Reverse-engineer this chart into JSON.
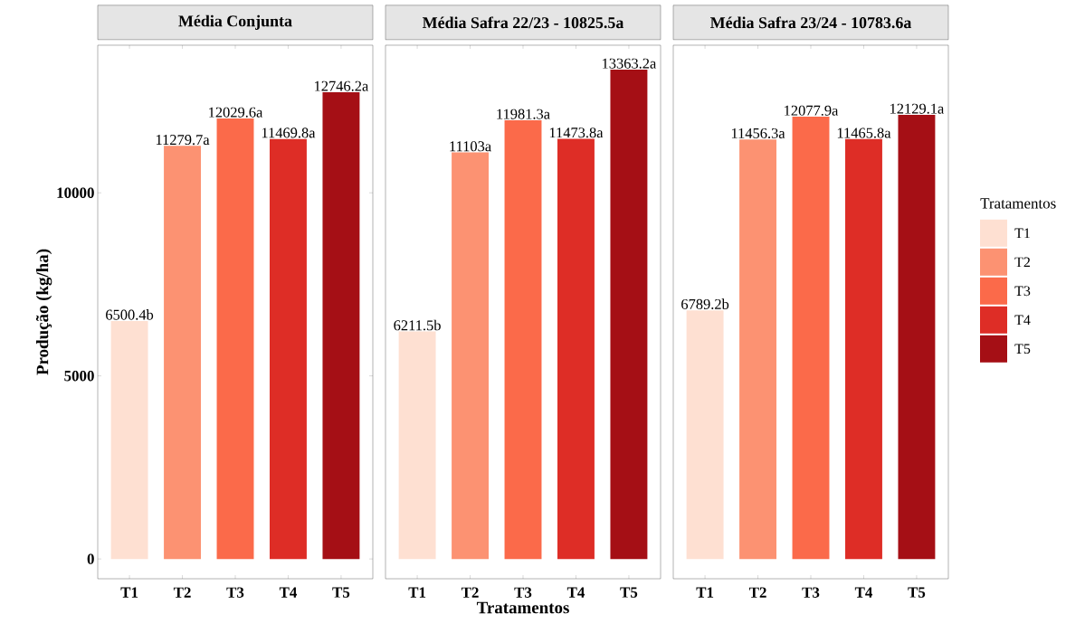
{
  "chart_data": [
    {
      "type": "bar",
      "title": "Média Conjunta",
      "ylabel": "Produção (kg/ha)",
      "categories": [
        "T1",
        "T2",
        "T3",
        "T4",
        "T5"
      ],
      "ylim": [
        -540,
        14030
      ],
      "yticks": [
        0,
        5000,
        10000
      ],
      "grid": false,
      "legend": false,
      "series": [
        {
          "color": "#fee0d2",
          "values": [
            6500.4,
            null,
            null,
            null,
            null
          ],
          "value_labels": [
            "6500.4b",
            null,
            null,
            null,
            null
          ]
        },
        {
          "color": "#fc9272",
          "values": [
            null,
            11279.7,
            null,
            null,
            null
          ],
          "value_labels": [
            null,
            "11279.7a",
            null,
            null,
            null
          ]
        },
        {
          "color": "#fb6a4a",
          "values": [
            null,
            null,
            12029.6,
            null,
            null
          ],
          "value_labels": [
            null,
            null,
            "12029.6a",
            null,
            null
          ]
        },
        {
          "color": "#de2d26",
          "values": [
            null,
            null,
            null,
            11469.8,
            null
          ],
          "value_labels": [
            null,
            null,
            null,
            "11469.8a",
            null
          ]
        },
        {
          "color": "#a50f15",
          "values": [
            null,
            null,
            null,
            null,
            12746.2
          ],
          "value_labels": [
            null,
            null,
            null,
            null,
            "12746.2a"
          ]
        }
      ]
    },
    {
      "type": "bar",
      "title": "Média Safra 22/23 - 10825.5a",
      "xlabel": "Tratamentos",
      "categories": [
        "T1",
        "T2",
        "T3",
        "T4",
        "T5"
      ],
      "ylim": [
        -540,
        14030
      ],
      "yticks": [
        0,
        5000,
        10000
      ],
      "tick_labels": "x",
      "grid": false,
      "legend": false,
      "series": [
        {
          "color": "#fee0d2",
          "values": [
            6211.5,
            null,
            null,
            null,
            null
          ],
          "value_labels": [
            "6211.5b",
            null,
            null,
            null,
            null
          ]
        },
        {
          "color": "#fc9272",
          "values": [
            null,
            11103,
            null,
            null,
            null
          ],
          "value_labels": [
            null,
            "11103a",
            null,
            null,
            null
          ]
        },
        {
          "color": "#fb6a4a",
          "values": [
            null,
            null,
            11981.3,
            null,
            null
          ],
          "value_labels": [
            null,
            null,
            "11981.3a",
            null,
            null
          ]
        },
        {
          "color": "#de2d26",
          "values": [
            null,
            null,
            null,
            11473.8,
            null
          ],
          "value_labels": [
            null,
            null,
            null,
            "11473.8a",
            null
          ]
        },
        {
          "color": "#a50f15",
          "values": [
            null,
            null,
            null,
            null,
            13363.2
          ],
          "value_labels": [
            null,
            null,
            null,
            null,
            "13363.2a"
          ]
        }
      ]
    },
    {
      "type": "bar",
      "title": "Média Safra 23/24 - 10783.6a",
      "legend_title": "Tratamentos",
      "categories": [
        "T1",
        "T2",
        "T3",
        "T4",
        "T5"
      ],
      "ylim": [
        -540,
        14030
      ],
      "yticks": [
        0,
        5000,
        10000
      ],
      "tick_labels": "x",
      "grid": false,
      "legend": "right",
      "series": [
        {
          "name": "T1",
          "color": "#fee0d2",
          "values": [
            6789.2,
            null,
            null,
            null,
            null
          ],
          "value_labels": [
            "6789.2b",
            null,
            null,
            null,
            null
          ]
        },
        {
          "name": "T2",
          "color": "#fc9272",
          "values": [
            null,
            11456.3,
            null,
            null,
            null
          ],
          "value_labels": [
            null,
            "11456.3a",
            null,
            null,
            null
          ]
        },
        {
          "name": "T3",
          "color": "#fb6a4a",
          "values": [
            null,
            null,
            12077.9,
            null,
            null
          ],
          "value_labels": [
            null,
            null,
            "12077.9a",
            null,
            null
          ]
        },
        {
          "name": "T4",
          "color": "#de2d26",
          "values": [
            null,
            null,
            null,
            11465.8,
            null
          ],
          "value_labels": [
            null,
            null,
            null,
            "11465.8a",
            null
          ]
        },
        {
          "name": "T5",
          "color": "#a50f15",
          "values": [
            null,
            null,
            null,
            null,
            12129.1
          ],
          "value_labels": [
            null,
            null,
            null,
            null,
            "12129.1a"
          ]
        }
      ]
    }
  ]
}
